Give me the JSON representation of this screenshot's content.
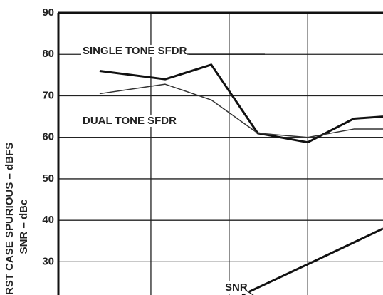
{
  "chart_data": {
    "type": "line",
    "y_axis_label": "RST CASE SPURIOUS – dBFS",
    "y_axis_label2": "SNR – dBc",
    "annotations": [
      "SINGLE TONE SFDR",
      "DUAL TONE SFDR",
      "SNR"
    ],
    "xlim": [
      0,
      100
    ],
    "xticks": [
      28.5,
      52.6,
      76.8
    ],
    "ylim": [
      22,
      90
    ],
    "yticks": [
      30,
      40,
      50,
      60,
      70,
      80,
      90
    ],
    "grid": true,
    "series": [
      {
        "name": "SINGLE TONE SFDR",
        "color": "#111111",
        "width": 3,
        "x": [
          12.7,
          32.9,
          47.1,
          61.4,
          76.8,
          91,
          100
        ],
        "values": [
          76,
          74,
          77.5,
          61,
          58.8,
          64.5,
          65
        ]
      },
      {
        "name": "DUAL TONE SFDR",
        "color": "#333333",
        "width": 1.5,
        "x": [
          12.7,
          32.9,
          47.1,
          61.4,
          76.8,
          91,
          100
        ],
        "values": [
          70.5,
          72.8,
          69,
          61,
          60,
          62,
          62
        ]
      },
      {
        "name": "SNR",
        "color": "#111111",
        "width": 3,
        "x": [
          56.6,
          76.8,
          100
        ],
        "values": [
          22,
          29.4,
          38
        ]
      }
    ]
  }
}
